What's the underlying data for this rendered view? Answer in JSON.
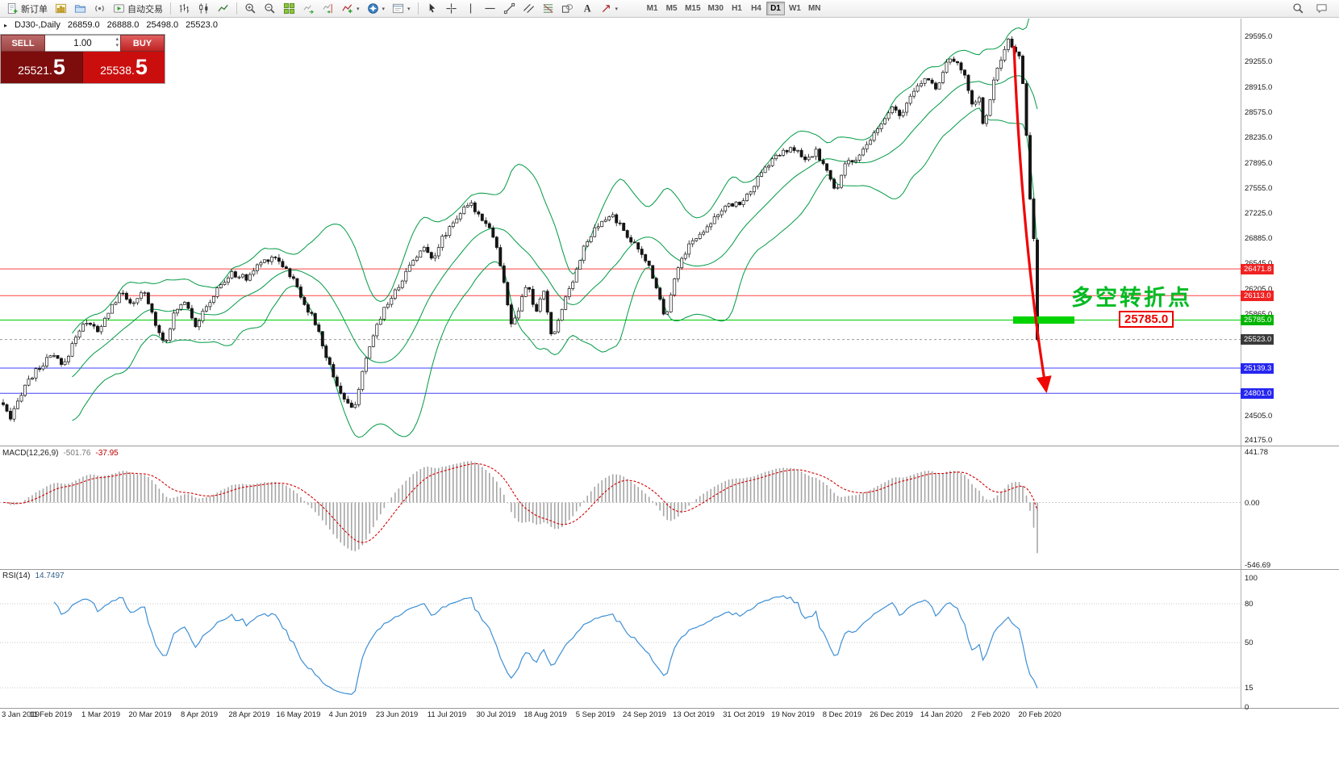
{
  "toolbar": {
    "new_order_label": "新订单",
    "autotrading_label": "自动交易",
    "timeframes": [
      "M1",
      "M5",
      "M15",
      "M30",
      "H1",
      "H4",
      "D1",
      "W1",
      "MN"
    ],
    "active_timeframe": "D1"
  },
  "chart": {
    "symbol_label": "DJ30-,Daily",
    "ohlc": {
      "open": "26859.0",
      "high": "26888.0",
      "low": "25498.0",
      "close": "25523.0"
    }
  },
  "trade_panel": {
    "sell_label": "SELL",
    "buy_label": "BUY",
    "volume": "1.00",
    "sell_price_small": "25521.",
    "sell_price_big": "5",
    "buy_price_small": "25538.",
    "buy_price_big": "5"
  },
  "annotations": {
    "turning_point_text": "多空转折点",
    "price_box_text": "25785.0",
    "highlight_price": 25785.0
  },
  "price_axis": {
    "labels": [
      {
        "t": "29595.0",
        "p": 29595
      },
      {
        "t": "29255.0",
        "p": 29255
      },
      {
        "t": "28915.0",
        "p": 28915
      },
      {
        "t": "28575.0",
        "p": 28575
      },
      {
        "t": "28235.0",
        "p": 28235
      },
      {
        "t": "27895.0",
        "p": 27895
      },
      {
        "t": "27555.0",
        "p": 27555
      },
      {
        "t": "27225.0",
        "p": 27225
      },
      {
        "t": "26885.0",
        "p": 26885
      },
      {
        "t": "26545.0",
        "p": 26545
      },
      {
        "t": "26205.0",
        "p": 26205
      },
      {
        "t": "25865.0",
        "p": 25865
      },
      {
        "t": "24505.0",
        "p": 24505
      },
      {
        "t": "24175.0",
        "p": 24175
      }
    ],
    "tags": [
      {
        "t": "26471.8",
        "p": 26471.8,
        "bg": "#f02222"
      },
      {
        "t": "26113.0",
        "p": 26113.0,
        "bg": "#f02222"
      },
      {
        "t": "25785.0",
        "p": 25785.0,
        "bg": "#00b400"
      },
      {
        "t": "25523.0",
        "p": 25523.0,
        "bg": "#3a3a3a"
      },
      {
        "t": "25139.3",
        "p": 25139.3,
        "bg": "#2626f0"
      },
      {
        "t": "24801.0",
        "p": 24801.0,
        "bg": "#2626f0"
      }
    ]
  },
  "levels": [
    {
      "price": 26471.8,
      "color": "#ff4242",
      "dash": ""
    },
    {
      "price": 26113.0,
      "color": "#ff4242",
      "dash": ""
    },
    {
      "price": 25785.0,
      "color": "#00cc00",
      "dash": ""
    },
    {
      "price": 25523.0,
      "color": "#9a9a9a",
      "dash": "3,3"
    },
    {
      "price": 25139.3,
      "color": "#4040ff",
      "dash": ""
    },
    {
      "price": 24801.0,
      "color": "#4040ff",
      "dash": ""
    }
  ],
  "macd_panel": {
    "label": "MACD(12,26,9)",
    "value_main": "-501.76",
    "value_signal": "-37.95",
    "axis": [
      {
        "t": "441.78",
        "v": 441.78
      },
      {
        "t": "0.00",
        "v": 0
      },
      {
        "t": "-546.69",
        "v": -546.69
      }
    ]
  },
  "rsi_panel": {
    "label": "RSI(14)",
    "value": "14.7497",
    "axis": [
      {
        "t": "100",
        "v": 100
      },
      {
        "t": "80",
        "v": 80
      },
      {
        "t": "50",
        "v": 50
      },
      {
        "t": "15",
        "v": 15
      },
      {
        "t": "0",
        "v": 0
      }
    ],
    "level_lines": [
      80,
      50,
      15
    ]
  },
  "date_axis": [
    "3 Jan 2019",
    "11 Feb 2019",
    "1 Mar 2019",
    "20 Mar 2019",
    "8 Apr 2019",
    "28 Apr 2019",
    "16 May 2019",
    "4 Jun 2019",
    "23 Jun 2019",
    "11 Jul 2019",
    "30 Jul 2019",
    "18 Aug 2019",
    "5 Sep 2019",
    "24 Sep 2019",
    "13 Oct 2019",
    "31 Oct 2019",
    "19 Nov 2019",
    "8 Dec 2019",
    "26 Dec 2019",
    "14 Jan 2020",
    "2 Feb 2020",
    "20 Feb 2020"
  ],
  "chart_data": {
    "type": "candlestick",
    "symbol": "DJ30-",
    "timeframe": "Daily",
    "last_bar": {
      "open": 26859.0,
      "high": 26888.0,
      "low": 25498.0,
      "close": 25523.0
    },
    "ylim": [
      24175.0,
      29595.0
    ],
    "num_candles": 286,
    "price_path": [
      [
        0.0,
        24650
      ],
      [
        0.007,
        24430
      ],
      [
        0.02,
        24900
      ],
      [
        0.035,
        25150
      ],
      [
        0.048,
        25320
      ],
      [
        0.058,
        25140
      ],
      [
        0.07,
        25580
      ],
      [
        0.082,
        25790
      ],
      [
        0.092,
        25600
      ],
      [
        0.103,
        25940
      ],
      [
        0.115,
        26160
      ],
      [
        0.126,
        25980
      ],
      [
        0.136,
        26170
      ],
      [
        0.148,
        25720
      ],
      [
        0.156,
        25470
      ],
      [
        0.166,
        25890
      ],
      [
        0.176,
        26060
      ],
      [
        0.186,
        25720
      ],
      [
        0.197,
        25960
      ],
      [
        0.209,
        26240
      ],
      [
        0.222,
        26410
      ],
      [
        0.235,
        26340
      ],
      [
        0.249,
        26560
      ],
      [
        0.262,
        26650
      ],
      [
        0.272,
        26500
      ],
      [
        0.282,
        26290
      ],
      [
        0.292,
        25990
      ],
      [
        0.302,
        25740
      ],
      [
        0.312,
        25310
      ],
      [
        0.322,
        24940
      ],
      [
        0.33,
        24710
      ],
      [
        0.338,
        24560
      ],
      [
        0.348,
        25090
      ],
      [
        0.358,
        25590
      ],
      [
        0.368,
        25940
      ],
      [
        0.378,
        26140
      ],
      [
        0.388,
        26390
      ],
      [
        0.398,
        26640
      ],
      [
        0.407,
        26740
      ],
      [
        0.416,
        26630
      ],
      [
        0.425,
        26890
      ],
      [
        0.434,
        27090
      ],
      [
        0.443,
        27240
      ],
      [
        0.452,
        27340
      ],
      [
        0.46,
        27200
      ],
      [
        0.468,
        27090
      ],
      [
        0.476,
        26840
      ],
      [
        0.484,
        26280
      ],
      [
        0.492,
        25690
      ],
      [
        0.499,
        25940
      ],
      [
        0.507,
        26290
      ],
      [
        0.515,
        25860
      ],
      [
        0.523,
        26190
      ],
      [
        0.531,
        25490
      ],
      [
        0.54,
        25950
      ],
      [
        0.55,
        26300
      ],
      [
        0.561,
        26740
      ],
      [
        0.572,
        26990
      ],
      [
        0.583,
        27140
      ],
      [
        0.589,
        27200
      ],
      [
        0.596,
        27060
      ],
      [
        0.605,
        26900
      ],
      [
        0.615,
        26700
      ],
      [
        0.625,
        26500
      ],
      [
        0.632,
        26220
      ],
      [
        0.64,
        25800
      ],
      [
        0.648,
        26300
      ],
      [
        0.656,
        26600
      ],
      [
        0.664,
        26820
      ],
      [
        0.672,
        26900
      ],
      [
        0.68,
        27050
      ],
      [
        0.69,
        27200
      ],
      [
        0.7,
        27300
      ],
      [
        0.708,
        27350
      ],
      [
        0.716,
        27380
      ],
      [
        0.726,
        27600
      ],
      [
        0.736,
        27800
      ],
      [
        0.746,
        27980
      ],
      [
        0.756,
        28040
      ],
      [
        0.766,
        28090
      ],
      [
        0.776,
        27900
      ],
      [
        0.786,
        28050
      ],
      [
        0.796,
        27800
      ],
      [
        0.805,
        27480
      ],
      [
        0.815,
        27950
      ],
      [
        0.825,
        27900
      ],
      [
        0.835,
        28130
      ],
      [
        0.848,
        28400
      ],
      [
        0.86,
        28620
      ],
      [
        0.87,
        28540
      ],
      [
        0.878,
        28800
      ],
      [
        0.886,
        28950
      ],
      [
        0.894,
        29050
      ],
      [
        0.902,
        28900
      ],
      [
        0.91,
        29150
      ],
      [
        0.917,
        29330
      ],
      [
        0.924,
        29180
      ],
      [
        0.93,
        29050
      ],
      [
        0.938,
        28650
      ],
      [
        0.943,
        28850
      ],
      [
        0.948,
        28350
      ],
      [
        0.954,
        28750
      ],
      [
        0.96,
        29100
      ],
      [
        0.966,
        29300
      ],
      [
        0.972,
        29530
      ],
      [
        0.977,
        29400
      ],
      [
        0.981,
        29450
      ],
      [
        0.984,
        29220
      ],
      [
        0.9875,
        28700
      ],
      [
        0.9905,
        28000
      ],
      [
        0.9935,
        27300
      ],
      [
        0.9965,
        26859
      ],
      [
        1.0,
        25523
      ]
    ],
    "indicators": {
      "bollinger_bands": {
        "period": 20,
        "deviation": 2,
        "color": "#009a44"
      },
      "macd": {
        "fast": 12,
        "slow": 26,
        "signal": 9,
        "current_main": -501.76,
        "current_signal": -37.95,
        "range": [
          -546.69,
          441.78
        ]
      },
      "rsi": {
        "period": 14,
        "current": 14.7497,
        "range": [
          0,
          100
        ]
      }
    },
    "horizontal_levels": [
      26471.8,
      26113.0,
      25785.0,
      25523.0,
      25139.3,
      24801.0
    ]
  }
}
